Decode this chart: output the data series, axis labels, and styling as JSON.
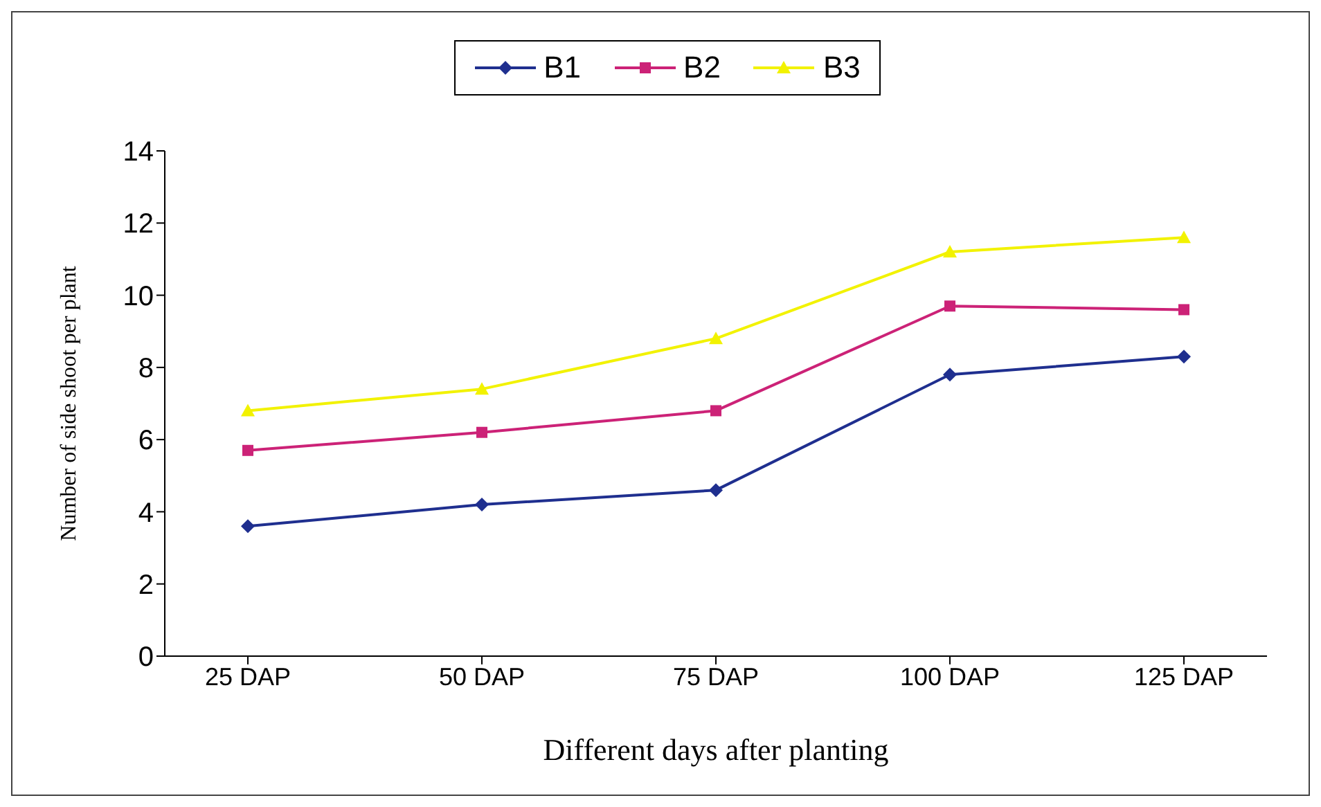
{
  "chart_data": {
    "type": "line",
    "xlabel": "Different days after planting",
    "ylabel": "Number of side shoot per plant",
    "categories": [
      "25 DAP",
      "50 DAP",
      "75 DAP",
      "100 DAP",
      "125 DAP"
    ],
    "series": [
      {
        "name": "B1",
        "color": "#1f2f8f",
        "marker": "diamond",
        "values": [
          3.6,
          4.2,
          4.6,
          7.8,
          8.3
        ]
      },
      {
        "name": "B2",
        "color": "#cc2277",
        "marker": "square",
        "values": [
          5.7,
          6.2,
          6.8,
          9.7,
          9.6
        ]
      },
      {
        "name": "B3",
        "color": "#f2f200",
        "marker": "triangle",
        "values": [
          6.8,
          7.4,
          8.8,
          11.2,
          11.6
        ]
      }
    ],
    "ylim": [
      0,
      14
    ],
    "yticks": [
      0,
      2,
      4,
      6,
      8,
      10,
      12,
      14
    ],
    "grid": false,
    "legend": "top"
  }
}
